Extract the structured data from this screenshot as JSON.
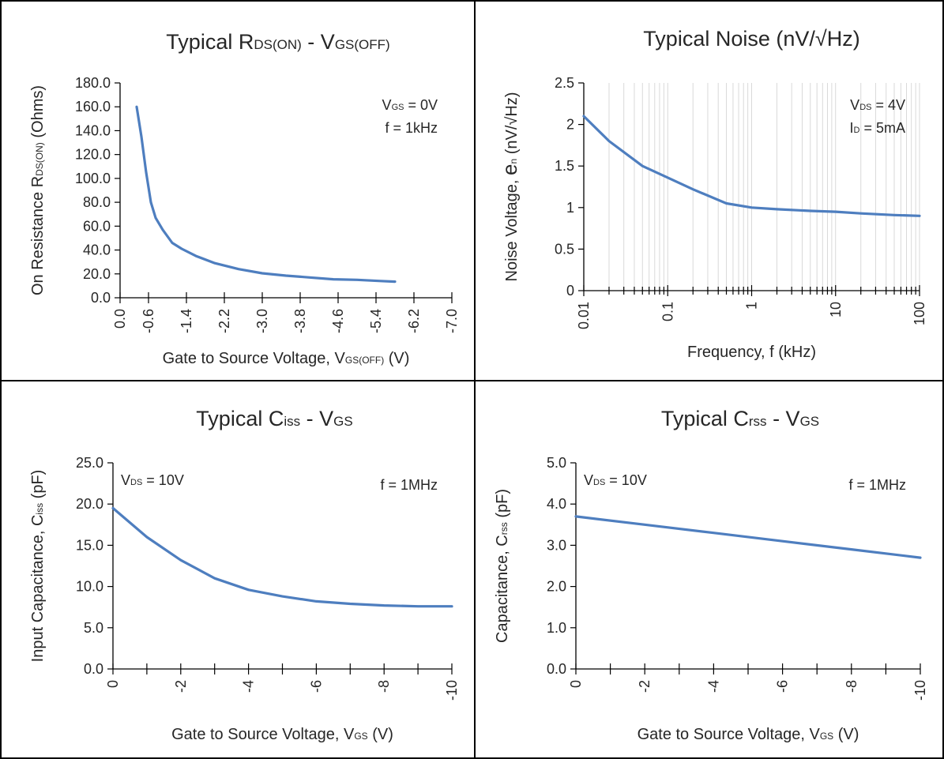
{
  "chart_data": [
    {
      "type": "line",
      "title": {
        "main": "Typical R",
        "sub1": "DS(ON)",
        "mid": " - V",
        "sub2": "GS(OFF)"
      },
      "xlabel": {
        "pre": "Gate to Source Voltage, V",
        "sub": "GS(OFF)",
        "post": " (V)"
      },
      "ylabel": {
        "pre": "On Resistance R",
        "sub": "DS(ON)",
        "post": " (Ohms)"
      },
      "x_scale": "linear",
      "xlim": [
        0.0,
        -7.0
      ],
      "ylim": [
        0.0,
        180.0
      ],
      "x_ticks": [
        0.0,
        -0.6,
        -1.4,
        -2.2,
        -3.0,
        -3.8,
        -4.6,
        -5.4,
        -6.2,
        -7.0
      ],
      "x_tick_labels": [
        "0.0",
        "-0.6",
        "-1.4",
        "-2.2",
        "-3.0",
        "-3.8",
        "-4.6",
        "-5.4",
        "-6.2",
        "-7.0"
      ],
      "y_ticks": [
        0,
        20,
        40,
        60,
        80,
        100,
        120,
        140,
        160,
        180
      ],
      "y_tick_labels": [
        "0.0",
        "20.0",
        "40.0",
        "60.0",
        "80.0",
        "100.0",
        "120.0",
        "140.0",
        "160.0",
        "180.0"
      ],
      "grid": "none",
      "series": [
        {
          "x": [
            -0.35,
            -0.45,
            -0.55,
            -0.65,
            -0.75,
            -0.9,
            -1.1,
            -1.3,
            -1.6,
            -2.0,
            -2.5,
            -3.0,
            -3.5,
            -4.0,
            -4.5,
            -5.0,
            -5.5,
            -5.8
          ],
          "y": [
            160,
            135,
            105,
            80,
            67,
            57,
            46,
            41,
            35,
            29,
            24,
            20.5,
            18.5,
            17,
            15.5,
            15,
            14,
            13.5
          ]
        }
      ],
      "annotations": [
        {
          "pre": "V",
          "sub": "GS",
          "post": " = 0V"
        },
        {
          "pre": "f = 1kHz",
          "sub": "",
          "post": ""
        }
      ],
      "annotation_anchor": "top-right",
      "color": "#4e7ebf"
    },
    {
      "type": "line",
      "title": {
        "main": "Typical Noise (nV/√Hz)",
        "sub1": "",
        "mid": "",
        "sub2": ""
      },
      "xlabel": {
        "pre": "Frequency, f (kHz)",
        "sub": "",
        "post": ""
      },
      "ylabel": {
        "pre": "Noise Voltage, ",
        "big": "e",
        "sub": "n",
        "post": " (nV/√Hz)"
      },
      "x_scale": "log",
      "xlim": [
        0.01,
        100
      ],
      "ylim": [
        0,
        2.5
      ],
      "x_ticks": [
        0.01,
        0.1,
        1,
        10,
        100
      ],
      "x_tick_labels": [
        "0.01",
        "0.1",
        "1",
        "10",
        "100"
      ],
      "y_ticks": [
        0,
        0.5,
        1,
        1.5,
        2,
        2.5
      ],
      "y_tick_labels": [
        "0",
        "0.5",
        "1",
        "1.5",
        "2",
        "2.5"
      ],
      "grid": "log-vertical",
      "series": [
        {
          "x": [
            0.01,
            0.02,
            0.05,
            0.1,
            0.2,
            0.5,
            1,
            2,
            5,
            10,
            20,
            50,
            100
          ],
          "y": [
            2.1,
            1.8,
            1.5,
            1.36,
            1.22,
            1.05,
            1.0,
            0.98,
            0.96,
            0.95,
            0.93,
            0.91,
            0.9
          ]
        }
      ],
      "annotations": [
        {
          "pre": "V",
          "sub": "DS",
          "post": " = 4V"
        },
        {
          "pre": "I",
          "sub": "D",
          "post": " = 5mA"
        }
      ],
      "annotation_anchor": "top-right",
      "color": "#4e7ebf"
    },
    {
      "type": "line",
      "title": {
        "main": "Typical C",
        "sub1": "iss",
        "mid": " - V",
        "sub2": "GS"
      },
      "xlabel": {
        "pre": "Gate to Source Voltage, V",
        "sub": "GS",
        "post": " (V)"
      },
      "ylabel": {
        "pre": "Input Capacitance, C",
        "sub": "iss",
        "post": " (pF)"
      },
      "x_scale": "linear",
      "xlim": [
        0,
        -10
      ],
      "ylim": [
        0,
        25
      ],
      "x_ticks": [
        0,
        -2,
        -4,
        -6,
        -8,
        -10
      ],
      "x_tick_labels": [
        "0",
        "-2",
        "-4",
        "-6",
        "-8",
        "-10"
      ],
      "x_minor_ticks": [
        -1,
        -3,
        -5,
        -7,
        -9
      ],
      "y_ticks": [
        0,
        5,
        10,
        15,
        20,
        25
      ],
      "y_tick_labels": [
        "0.0",
        "5.0",
        "10.0",
        "15.0",
        "20.0",
        "25.0"
      ],
      "grid": "none",
      "series": [
        {
          "x": [
            0,
            -1,
            -2,
            -3,
            -4,
            -5,
            -6,
            -7,
            -8,
            -9,
            -10
          ],
          "y": [
            19.5,
            16.0,
            13.2,
            11.0,
            9.6,
            8.8,
            8.2,
            7.9,
            7.7,
            7.6,
            7.6
          ]
        }
      ],
      "annotations_left": [
        {
          "pre": "V",
          "sub": "DS",
          "post": " = 10V"
        }
      ],
      "annotations": [
        {
          "pre": "f = 1MHz",
          "sub": "",
          "post": ""
        }
      ],
      "annotation_anchor": "top-right",
      "color": "#4e7ebf"
    },
    {
      "type": "line",
      "title": {
        "main": "Typical C",
        "sub1": "rss",
        "mid": " - V",
        "sub2": "GS"
      },
      "xlabel": {
        "pre": "Gate to Source Voltage, V",
        "sub": "GS",
        "post": " (V)"
      },
      "ylabel": {
        "pre": "Capacitance, C",
        "sub": "rss",
        "post": " (pF)"
      },
      "x_scale": "linear",
      "xlim": [
        0,
        -10
      ],
      "ylim": [
        0,
        5
      ],
      "x_ticks": [
        0,
        -2,
        -4,
        -6,
        -8,
        -10
      ],
      "x_tick_labels": [
        "0",
        "-2",
        "-4",
        "-6",
        "-8",
        "-10"
      ],
      "x_minor_ticks": [
        -1,
        -3,
        -5,
        -7,
        -9
      ],
      "y_ticks": [
        0,
        1,
        2,
        3,
        4,
        5
      ],
      "y_tick_labels": [
        "0.0",
        "1.0",
        "2.0",
        "3.0",
        "4.0",
        "5.0"
      ],
      "grid": "none",
      "series": [
        {
          "x": [
            0,
            -2,
            -4,
            -6,
            -8,
            -10
          ],
          "y": [
            3.7,
            3.5,
            3.3,
            3.1,
            2.9,
            2.7
          ]
        }
      ],
      "annotations_left": [
        {
          "pre": "V",
          "sub": "DS",
          "post": " = 10V"
        }
      ],
      "annotations": [
        {
          "pre": "f = 1MHz",
          "sub": "",
          "post": ""
        }
      ],
      "annotation_anchor": "top-right",
      "color": "#4e7ebf"
    }
  ]
}
